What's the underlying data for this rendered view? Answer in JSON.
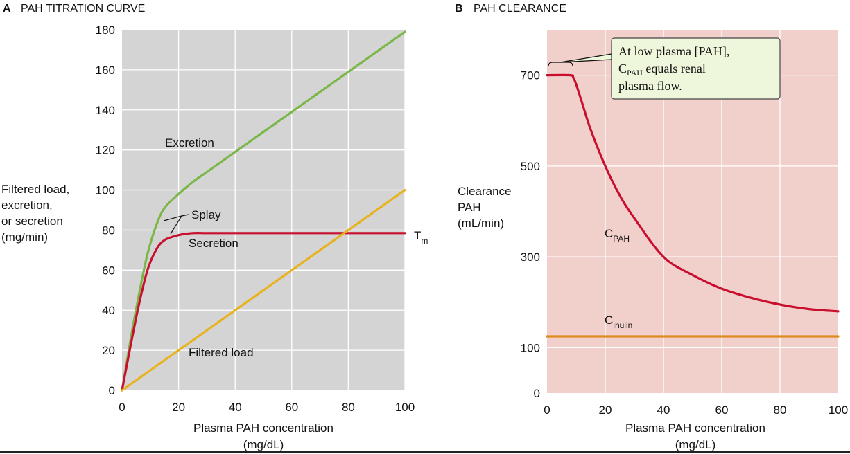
{
  "chart_data": [
    {
      "panel": "A",
      "type": "line",
      "title": "PAH TITRATION CURVE",
      "xlabel": [
        "Plasma PAH concentration",
        "(mg/dL)"
      ],
      "ylabel": [
        "Filtered load,",
        "excretion,",
        "or secretion",
        "(mg/min)"
      ],
      "xlim": [
        0,
        100
      ],
      "ylim": [
        0,
        180
      ],
      "xticks": [
        0,
        20,
        40,
        60,
        80,
        100
      ],
      "yticks": [
        0,
        20,
        40,
        60,
        80,
        100,
        120,
        140,
        160,
        180
      ],
      "grid": true,
      "background": "#d4d4d4",
      "series": [
        {
          "key": "excretion",
          "name": "Excretion",
          "color": "#7ab648",
          "x": [
            0,
            3,
            6,
            9,
            12,
            15,
            20,
            25,
            30,
            40,
            50,
            60,
            70,
            80,
            90,
            100
          ],
          "y": [
            0,
            25,
            48,
            68,
            82,
            91,
            98,
            104,
            109,
            119,
            129,
            139,
            149,
            159,
            169,
            179
          ]
        },
        {
          "key": "secretion",
          "name": "Secretion",
          "color": "#c8102e",
          "x": [
            0,
            3,
            6,
            9,
            12,
            15,
            20,
            25,
            30,
            40,
            60,
            80,
            100
          ],
          "y": [
            0,
            22,
            43,
            60,
            70,
            75,
            77.5,
            78.5,
            78.5,
            78.5,
            78.5,
            78.5,
            78.5
          ]
        },
        {
          "key": "filtered",
          "name": "Filtered load",
          "color": "#e8b21e",
          "x": [
            0,
            100
          ],
          "y": [
            0,
            100
          ]
        }
      ],
      "annotations": {
        "excretion": "Excretion",
        "splay": "Splay",
        "secretion": "Secretion",
        "filtered": "Filtered load",
        "tm_main": "T",
        "tm_sub": "m"
      }
    },
    {
      "panel": "B",
      "type": "line",
      "title": "PAH CLEARANCE",
      "xlabel": [
        "Plasma PAH concentration",
        "(mg/dL)"
      ],
      "ylabel": [
        "Clearance",
        "PAH",
        "(mL/min)"
      ],
      "xlim": [
        0,
        100
      ],
      "ylim": [
        0,
        800
      ],
      "xticks": [
        0,
        20,
        40,
        60,
        80,
        100
      ],
      "yticks": [
        0,
        100,
        300,
        500,
        700
      ],
      "grid": true,
      "background": "#f1d0cc",
      "series": [
        {
          "key": "cpah",
          "name_main": "C",
          "name_sub": "PAH",
          "color": "#c8102e",
          "x": [
            0,
            8,
            9,
            10,
            12,
            15,
            20,
            25,
            30,
            40,
            50,
            60,
            70,
            80,
            90,
            100
          ],
          "y": [
            700,
            700,
            695,
            680,
            640,
            580,
            500,
            435,
            385,
            300,
            260,
            230,
            210,
            195,
            185,
            180
          ]
        },
        {
          "key": "cinulin",
          "name_main": "C",
          "name_sub": "inulin",
          "color": "#e08a1e",
          "x": [
            0,
            100
          ],
          "y": [
            125,
            125
          ]
        }
      ],
      "callout": {
        "line1": "At low plasma [PAH],",
        "line2_main": "C",
        "line2_sub": "PAH",
        "line2_rest": " equals renal",
        "line3": "plasma flow.",
        "x_range": [
          0,
          8
        ],
        "background": "#eef6dc"
      }
    }
  ]
}
